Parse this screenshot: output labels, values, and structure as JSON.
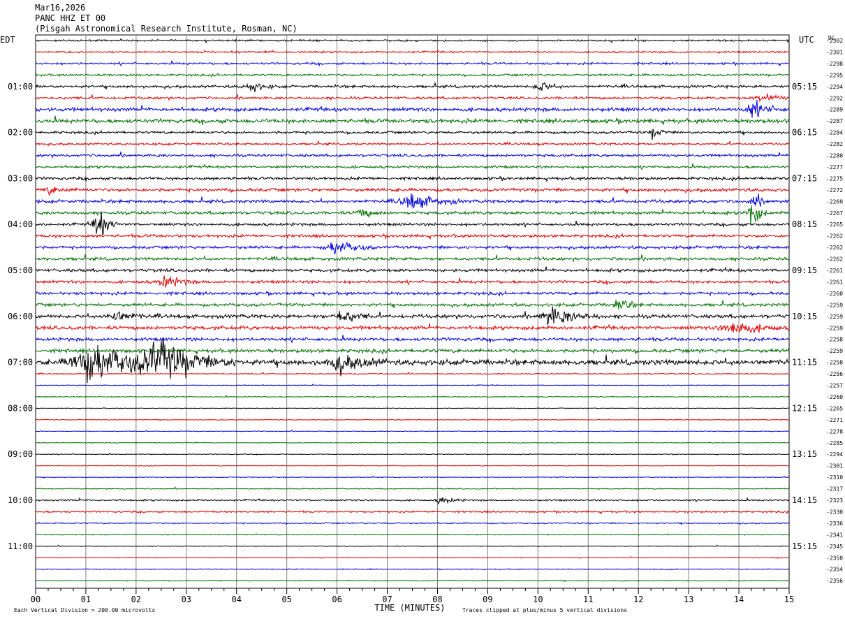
{
  "header": {
    "date": "Mar16,2026",
    "station": "PANC HHZ ET 00",
    "location": "(Pisgah Astronomical Research Institute, Rosman, NC)"
  },
  "footer": {
    "division_note": "Each Vertical Division =  200.00 microvolts",
    "clip_note": "Traces clipped at plus/minus 5 vertical divisions"
  },
  "chart_data": {
    "type": "line",
    "title": "PANC HHZ ET 00",
    "xlabel": "TIME (MINUTES)",
    "left_axis_label": "EDT",
    "right_axis_label": "UTC",
    "dc_label": "DC",
    "x_range": [
      0,
      15
    ],
    "x_ticks": [
      "00",
      "01",
      "02",
      "03",
      "04",
      "05",
      "06",
      "07",
      "08",
      "09",
      "10",
      "11",
      "12",
      "13",
      "14",
      "15"
    ],
    "left_hour_labels": [
      "01:00",
      "02:00",
      "03:00",
      "04:00",
      "05:00",
      "06:00",
      "07:00",
      "08:00",
      "09:00",
      "10:00",
      "11:00"
    ],
    "right_hour_labels": [
      "05:15",
      "06:15",
      "07:15",
      "08:15",
      "09:15",
      "10:15",
      "11:15",
      "12:15",
      "13:15",
      "14:15",
      "15:15"
    ],
    "first_labeled_trace": 4,
    "traces_per_hour": 4,
    "trace_colors": [
      "#000000",
      "#e00000",
      "#0000e0",
      "#007000"
    ],
    "grid": true,
    "dc_offsets": [
      -2302,
      -2301,
      -2298,
      -2295,
      -2294,
      -2292,
      -2289,
      -2287,
      -2284,
      -2282,
      -2280,
      -2277,
      -2275,
      -2272,
      -2269,
      -2267,
      -2265,
      -2262,
      -2262,
      -2262,
      -2261,
      -2261,
      -2260,
      -2259,
      -2259,
      -2259,
      -2258,
      -2259,
      -2258,
      -2256,
      -2257,
      -2260,
      -2265,
      -2271,
      -2278,
      -2285,
      -2294,
      -2301,
      -2310,
      -2317,
      -2323,
      -2330,
      -2336,
      -2341,
      -2345,
      -2350,
      -2354,
      -2356
    ],
    "trace_noise_level": [
      1.0,
      1.0,
      1.2,
      1.2,
      1.5,
      1.4,
      2.0,
      2.2,
      1.4,
      1.2,
      1.5,
      1.4,
      1.6,
      1.8,
      1.8,
      1.7,
      1.5,
      1.6,
      1.6,
      1.7,
      1.7,
      1.6,
      1.6,
      1.7,
      2.0,
      2.0,
      1.8,
      2.0,
      3.0,
      0.6,
      0.5,
      0.5,
      0.4,
      0.4,
      0.4,
      0.4,
      0.4,
      0.4,
      0.4,
      0.6,
      0.9,
      1.0,
      0.7,
      0.4,
      0.4,
      0.4,
      0.5,
      0.5
    ],
    "events": [
      {
        "trace": 4,
        "minute": 4.3,
        "amplitude": 6,
        "duration": 0.3
      },
      {
        "trace": 4,
        "minute": 10.05,
        "amplitude": 6,
        "duration": 0.3
      },
      {
        "trace": 5,
        "minute": 14.5,
        "amplitude": 5,
        "duration": 0.4
      },
      {
        "trace": 6,
        "minute": 14.3,
        "amplitude": 9,
        "duration": 0.4
      },
      {
        "trace": 8,
        "minute": 12.3,
        "amplitude": 6,
        "duration": 0.2
      },
      {
        "trace": 13,
        "minute": 0.3,
        "amplitude": 4,
        "duration": 0.3
      },
      {
        "trace": 14,
        "minute": 7.5,
        "amplitude": 9,
        "duration": 0.6
      },
      {
        "trace": 14,
        "minute": 14.3,
        "amplitude": 8,
        "duration": 0.2
      },
      {
        "trace": 15,
        "minute": 6.5,
        "amplitude": 5,
        "duration": 0.3
      },
      {
        "trace": 16,
        "minute": 1.25,
        "amplitude": 18,
        "duration": 0.25
      },
      {
        "trace": 15,
        "minute": 14.25,
        "amplitude": 18,
        "duration": 0.2
      },
      {
        "trace": 18,
        "minute": 6.0,
        "amplitude": 8,
        "duration": 0.5
      },
      {
        "trace": 21,
        "minute": 2.6,
        "amplitude": 7,
        "duration": 0.4
      },
      {
        "trace": 23,
        "minute": 11.6,
        "amplitude": 8,
        "duration": 0.3
      },
      {
        "trace": 24,
        "minute": 1.6,
        "amplitude": 7,
        "duration": 0.4
      },
      {
        "trace": 24,
        "minute": 6.1,
        "amplitude": 8,
        "duration": 0.4
      },
      {
        "trace": 24,
        "minute": 10.3,
        "amplitude": 10,
        "duration": 0.6
      },
      {
        "trace": 25,
        "minute": 13.9,
        "amplitude": 9,
        "duration": 0.6
      },
      {
        "trace": 28,
        "minute": 1.2,
        "amplitude": 20,
        "duration": 1.2
      },
      {
        "trace": 28,
        "minute": 2.5,
        "amplitude": 20,
        "duration": 1.0
      },
      {
        "trace": 28,
        "minute": 6.1,
        "amplitude": 10,
        "duration": 0.6
      },
      {
        "trace": 40,
        "minute": 8.1,
        "amplitude": 4,
        "duration": 0.3
      }
    ]
  }
}
